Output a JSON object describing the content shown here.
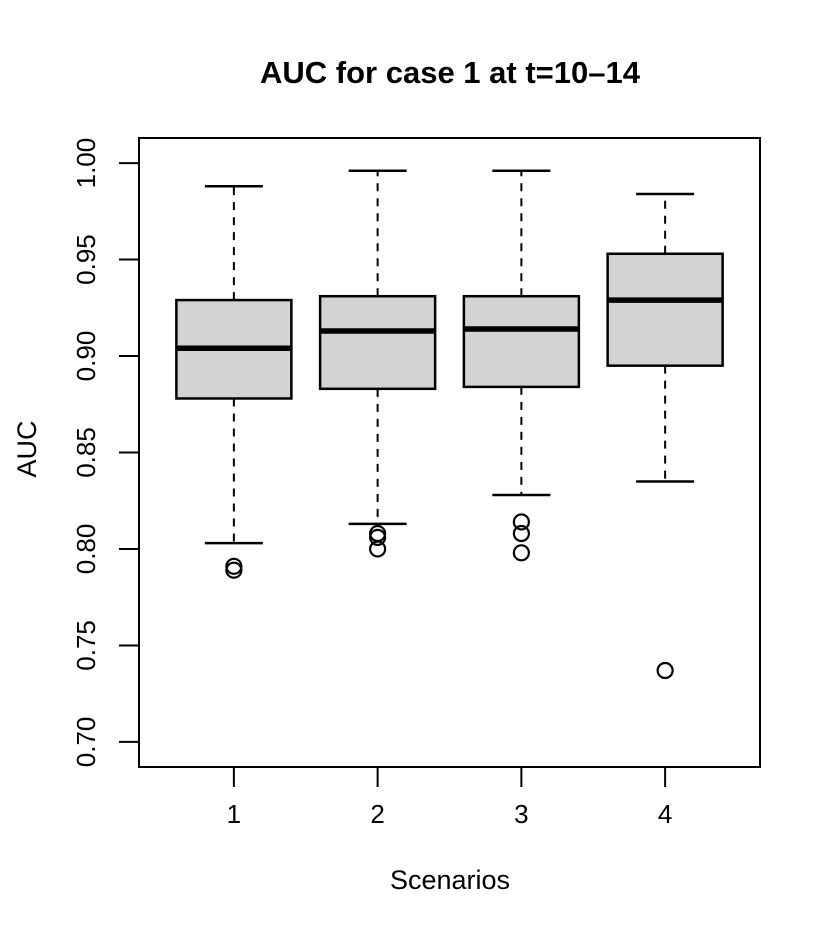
{
  "page": {
    "background_color": "#ffffff"
  },
  "chart_data": {
    "type": "boxplot",
    "title": "AUC for case 1 at t=10–14",
    "xlabel": "Scenarios",
    "ylabel": "AUC",
    "categories": [
      "1",
      "2",
      "3",
      "4"
    ],
    "y_tick_labels": [
      "0.70",
      "0.75",
      "0.80",
      "0.85",
      "0.90",
      "0.95",
      "1.00"
    ],
    "y_ticks": [
      0.7,
      0.75,
      0.8,
      0.85,
      0.9,
      0.95,
      1.0
    ],
    "ylim": [
      0.687,
      1.013
    ],
    "grid": false,
    "legend": null,
    "box_fill_color": "#d3d3d3",
    "line_color": "#000000",
    "series": [
      {
        "category": "1",
        "whisker_low": 0.803,
        "q1": 0.878,
        "median": 0.904,
        "q3": 0.929,
        "whisker_high": 0.988,
        "outliers": [
          0.791,
          0.789
        ]
      },
      {
        "category": "2",
        "whisker_low": 0.813,
        "q1": 0.883,
        "median": 0.913,
        "q3": 0.931,
        "whisker_high": 0.996,
        "outliers": [
          0.808,
          0.806,
          0.8
        ]
      },
      {
        "category": "3",
        "whisker_low": 0.828,
        "q1": 0.884,
        "median": 0.914,
        "q3": 0.931,
        "whisker_high": 0.996,
        "outliers": [
          0.814,
          0.808,
          0.798
        ]
      },
      {
        "category": "4",
        "whisker_low": 0.835,
        "q1": 0.895,
        "median": 0.929,
        "q3": 0.953,
        "whisker_high": 0.984,
        "outliers": [
          0.737
        ]
      }
    ]
  }
}
